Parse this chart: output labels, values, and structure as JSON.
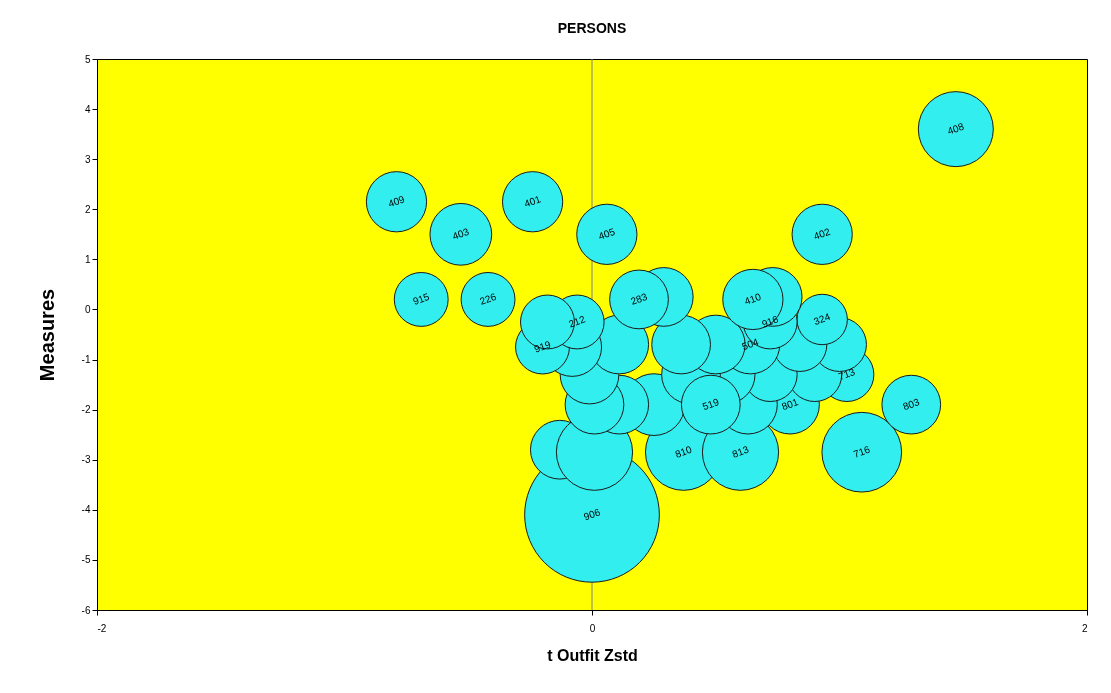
{
  "chart_data": {
    "type": "bubble",
    "title": "PERSONS",
    "xlabel": "t Outfit Zstd",
    "ylabel": "Measures",
    "xlim": [
      -2,
      2
    ],
    "xticks": [
      -2,
      0,
      2
    ],
    "ylim": [
      -6,
      5
    ],
    "yticks": [
      -6,
      -5,
      -4,
      -3,
      -2,
      -1,
      0,
      1,
      2,
      3,
      4,
      5
    ],
    "grid": false,
    "ref_lines": [
      {
        "axis": "x",
        "value": 0
      }
    ],
    "series": [
      {
        "color": "#33eeee",
        "x": [
          0.0,
          -0.13,
          0.01,
          0.37,
          0.6,
          1.09,
          1.29,
          0.8,
          0.63,
          0.25,
          0.11,
          0.01,
          1.03,
          0.9,
          0.72,
          0.54,
          0.4,
          -0.01,
          1.0,
          0.84,
          0.64,
          0.5,
          0.36,
          0.11,
          -0.08,
          -0.2,
          -0.06,
          -0.18,
          0.93,
          0.72,
          0.29,
          0.19,
          0.73,
          0.65,
          -0.42,
          -0.69,
          0.93,
          0.06,
          -0.24,
          -0.53,
          -0.79,
          1.47,
          0.48
        ],
        "values": [
          -4.1,
          -2.8,
          -2.85,
          -2.85,
          -2.85,
          -2.85,
          -1.9,
          -1.9,
          -1.9,
          -1.9,
          -1.9,
          -1.9,
          -1.3,
          -1.3,
          -1.3,
          -1.3,
          -1.3,
          -1.3,
          -0.7,
          -0.7,
          -0.7,
          -0.7,
          -0.7,
          -0.7,
          -0.75,
          -0.75,
          -0.25,
          -0.25,
          -0.2,
          -0.25,
          0.25,
          0.2,
          0.25,
          0.2,
          0.2,
          0.2,
          1.5,
          1.5,
          2.15,
          1.5,
          2.15,
          3.6,
          -1.9
        ],
        "sizes": [
          1,
          0.19,
          0.32,
          0.32,
          0.32,
          0.35,
          0.19,
          0.19,
          0.19,
          0.21,
          0.19,
          0.19,
          0.16,
          0.16,
          0.16,
          0.19,
          0.19,
          0.19,
          0.16,
          0.16,
          0.19,
          0.19,
          0.19,
          0.19,
          0.19,
          0.16,
          0.16,
          0.16,
          0.14,
          0.16,
          0.19,
          0.19,
          0.19,
          0.2,
          0.16,
          0.16,
          0.2,
          0.2,
          0.2,
          0.21,
          0.2,
          0.31,
          0.19
        ]
      }
    ],
    "annotations": [
      {
        "text": "906",
        "x": 0.0,
        "y": -4.1
      },
      {
        "text": "810",
        "x": 0.37,
        "y": -2.85
      },
      {
        "text": "813",
        "x": 0.6,
        "y": -2.85
      },
      {
        "text": "716",
        "x": 1.09,
        "y": -2.85
      },
      {
        "text": "803",
        "x": 1.29,
        "y": -1.9
      },
      {
        "text": "801",
        "x": 0.8,
        "y": -1.9
      },
      {
        "text": "519",
        "x": 0.48,
        "y": -1.9
      },
      {
        "text": "713",
        "x": 1.03,
        "y": -1.3
      },
      {
        "text": "504",
        "x": 0.64,
        "y": -0.7
      },
      {
        "text": "919",
        "x": -0.2,
        "y": -0.75
      },
      {
        "text": "212",
        "x": -0.06,
        "y": -0.25
      },
      {
        "text": "324",
        "x": 0.93,
        "y": -0.2
      },
      {
        "text": "916",
        "x": 0.72,
        "y": -0.25
      },
      {
        "text": "410",
        "x": 0.65,
        "y": 0.2
      },
      {
        "text": "283",
        "x": 0.19,
        "y": 0.2
      },
      {
        "text": "226",
        "x": -0.42,
        "y": 0.2
      },
      {
        "text": "915",
        "x": -0.69,
        "y": 0.2
      },
      {
        "text": "402",
        "x": 0.93,
        "y": 1.5
      },
      {
        "text": "405",
        "x": 0.06,
        "y": 1.5
      },
      {
        "text": "401",
        "x": -0.24,
        "y": 2.15
      },
      {
        "text": "403",
        "x": -0.53,
        "y": 1.5
      },
      {
        "text": "409",
        "x": -0.79,
        "y": 2.15
      },
      {
        "text": "408",
        "x": 1.47,
        "y": 3.6
      }
    ]
  }
}
